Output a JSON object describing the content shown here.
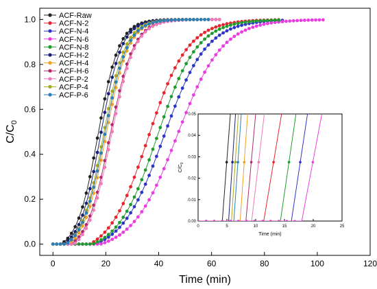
{
  "chart_data": [
    {
      "type": "line",
      "xlabel": "Time (min)",
      "ylabel_main": "C/C",
      "ylabel_sub": "0",
      "xlim": [
        -5,
        120
      ],
      "ylim": [
        -0.05,
        1.05
      ],
      "xticks": [
        0,
        20,
        40,
        60,
        80,
        100,
        120
      ],
      "yticks": [
        0.0,
        0.2,
        0.4,
        0.6,
        0.8,
        1.0
      ],
      "xtick_labels": [
        "0",
        "20",
        "40",
        "60",
        "80",
        "100",
        "120"
      ],
      "ytick_labels": [
        "0.0",
        "0.2",
        "0.4",
        "0.6",
        "0.8",
        "1.0"
      ],
      "legend_position": "top-left",
      "series": [
        {
          "name": "ACF-Raw",
          "color": "#222222",
          "x0": 3,
          "x50": 17.0,
          "k": 4.0,
          "xend": 53
        },
        {
          "name": "ACF-N-2",
          "color": "#e8242e",
          "x0": 14,
          "x50": 36.0,
          "k": 7.5,
          "xend": 86
        },
        {
          "name": "ACF-N-4",
          "color": "#2b35c6",
          "x0": 16,
          "x50": 42.0,
          "k": 8.0,
          "xend": 88
        },
        {
          "name": "ACF-N-6",
          "color": "#e83ee0",
          "x0": 18,
          "x50": 47.0,
          "k": 8.5,
          "xend": 103
        },
        {
          "name": "ACF-N-8",
          "color": "#1f9b2e",
          "x0": 15,
          "x50": 39.5,
          "k": 7.5,
          "xend": 86
        },
        {
          "name": "ACF-H-2",
          "color": "#1a1f78",
          "x0": 4,
          "x50": 18.0,
          "k": 4.0,
          "xend": 54
        },
        {
          "name": "ACF-H-4",
          "color": "#f0a020",
          "x0": 6,
          "x50": 20.0,
          "k": 4.3,
          "xend": 62
        },
        {
          "name": "ACF-H-6",
          "color": "#b0286e",
          "x0": 7,
          "x50": 21.5,
          "k": 4.5,
          "xend": 64
        },
        {
          "name": "ACF-P-2",
          "color": "#ee7ab8",
          "x0": 8,
          "x50": 22.0,
          "k": 4.5,
          "xend": 64
        },
        {
          "name": "ACF-P-4",
          "color": "#a8a818",
          "x0": 5,
          "x50": 19.0,
          "k": 4.2,
          "xend": 58
        },
        {
          "name": "ACF-P-6",
          "color": "#2a7fb8",
          "x0": 5,
          "x50": 19.5,
          "k": 4.3,
          "xend": 60
        }
      ]
    },
    {
      "type": "line",
      "inset": true,
      "xlabel": "Time (min)",
      "ylabel_main": "C/C",
      "ylabel_sub": "0",
      "xlim": [
        0,
        25
      ],
      "ylim": [
        0,
        0.05
      ],
      "xticks": [
        0,
        5,
        10,
        15,
        20,
        25
      ],
      "yticks": [
        0.0,
        0.01,
        0.02,
        0.03,
        0.04,
        0.05
      ],
      "xtick_labels": [
        "0",
        "5",
        "10",
        "15",
        "20",
        "25"
      ],
      "ytick_labels": [
        "0.00",
        "0.01",
        "0.02",
        "0.03",
        "0.04",
        "0.05"
      ],
      "series": [
        {
          "name": "ACF-Raw",
          "color": "#222222",
          "t0": 4.2,
          "t1": 5.6
        },
        {
          "name": "ACF-H-2",
          "color": "#1a1f78",
          "t0": 5.3,
          "t1": 6.5
        },
        {
          "name": "ACF-P-4",
          "color": "#a8a818",
          "t0": 5.8,
          "t1": 7.0
        },
        {
          "name": "ACF-P-6",
          "color": "#2a7fb8",
          "t0": 6.2,
          "t1": 7.5
        },
        {
          "name": "ACF-H-4",
          "color": "#f0a020",
          "t0": 7.3,
          "t1": 8.6
        },
        {
          "name": "ACF-H-6",
          "color": "#b0286e",
          "t0": 8.3,
          "t1": 10.0
        },
        {
          "name": "ACF-P-2",
          "color": "#ee7ab8",
          "t0": 9.3,
          "t1": 11.5
        },
        {
          "name": "ACF-N-2",
          "color": "#e8242e",
          "t0": 11.4,
          "t1": 14.5
        },
        {
          "name": "ACF-N-8",
          "color": "#1f9b2e",
          "t0": 14.3,
          "t1": 17.0
        },
        {
          "name": "ACF-N-4",
          "color": "#2b35c6",
          "t0": 16.2,
          "t1": 19.0
        },
        {
          "name": "ACF-N-6",
          "color": "#e83ee0",
          "t0": 18.0,
          "t1": 21.5
        }
      ]
    }
  ]
}
